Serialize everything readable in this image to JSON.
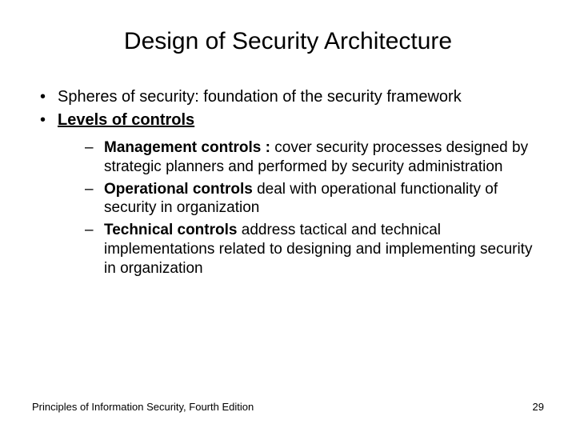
{
  "title": "Design of Security Architecture",
  "bullets": {
    "b1": "Spheres of security: foundation of the security framework",
    "b2": "Levels of controls",
    "sub1_bold": "Management controls : ",
    "sub1_rest": "cover security processes designed by strategic planners and performed by security administration",
    "sub2_bold": "Operational controls ",
    "sub2_rest": "deal with operational functionality of security in organization",
    "sub3_bold": "Technical controls ",
    "sub3_rest": "address tactical and technical implementations related to designing and implementing security in organization"
  },
  "footer": {
    "source": "Principles of Information Security, Fourth Edition",
    "page": "29"
  }
}
